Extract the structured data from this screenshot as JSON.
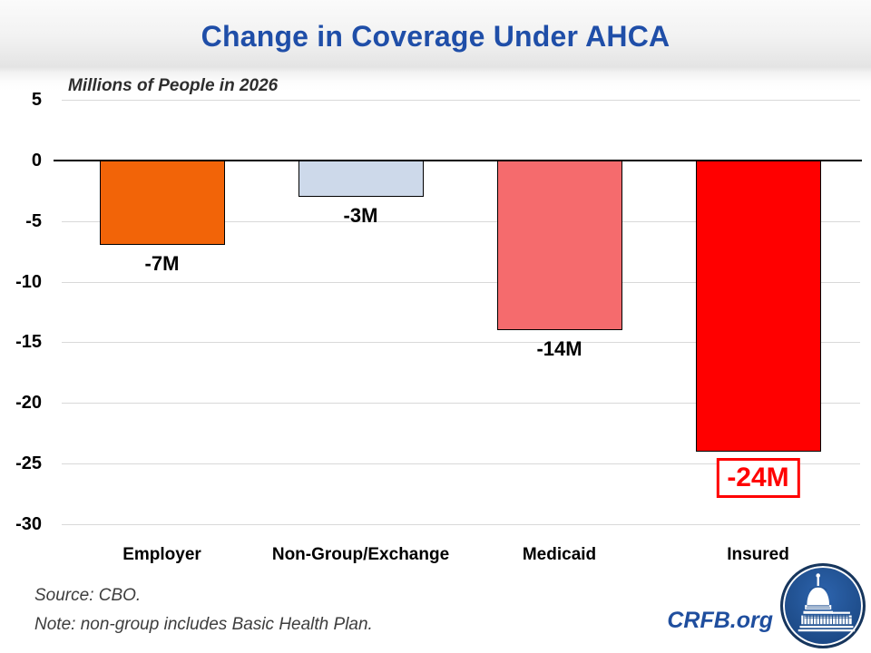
{
  "slide": {
    "title": "Change in Coverage Under AHCA",
    "footer": {
      "source": "Source: CBO.",
      "note": "Note: non-group includes Basic Health Plan.",
      "brand": "CRFB.org"
    },
    "logo_icon": "capitol-dome-icon"
  },
  "colors": {
    "title": "#1F4EA8",
    "brand": "#1F4E9E",
    "grid": "#D9D9D9",
    "axis": "#000000",
    "note_text": "#3D3D3D",
    "highlight": "#FF0000",
    "logo_ring": "#17365D",
    "logo_fill": "#1F4E8C"
  },
  "chart_data": {
    "type": "bar",
    "title": "Change in Coverage Under AHCA",
    "subtitle": "Millions of People in 2026",
    "categories": [
      "Employer",
      "Non-Group/Exchange",
      "Medicaid",
      "Insured"
    ],
    "values": [
      -7,
      -3,
      -14,
      -24
    ],
    "data_labels": [
      "-7M",
      "-3M",
      "-14M",
      "-24M"
    ],
    "bar_colors": [
      "#F26408",
      "#CDD9EA",
      "#F56B6D",
      "#FF0000"
    ],
    "bar_border_color": "#000000",
    "ylim": [
      -30,
      5
    ],
    "yticks": [
      5,
      0,
      -5,
      -10,
      -15,
      -20,
      -25,
      -30
    ],
    "grid": true,
    "legend": false,
    "highlight_index": 3,
    "xlabel": "",
    "ylabel": ""
  }
}
